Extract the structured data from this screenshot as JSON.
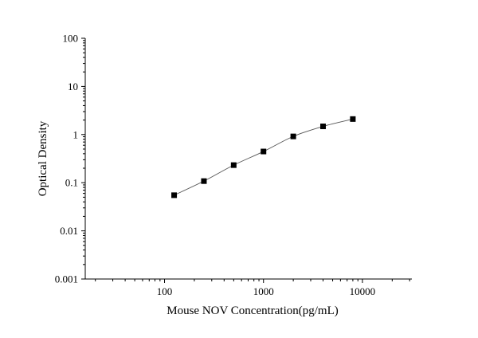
{
  "chart_data": {
    "type": "scatter",
    "title": "",
    "xlabel": "Mouse NOV Concentration(pg/mL)",
    "ylabel": "Optical Density",
    "x_scale": "log",
    "y_scale": "log",
    "xlim": [
      15.8,
      31600
    ],
    "ylim": [
      0.001,
      100
    ],
    "x_ticks": [
      {
        "value": 100,
        "label": "100"
      },
      {
        "value": 1000,
        "label": "1000"
      },
      {
        "value": 10000,
        "label": "10000"
      }
    ],
    "y_ticks": [
      {
        "value": 100,
        "label": "100"
      },
      {
        "value": 10,
        "label": "10"
      },
      {
        "value": 1,
        "label": "1"
      },
      {
        "value": 0.1,
        "label": "0.1"
      },
      {
        "value": 0.01,
        "label": "0.01"
      },
      {
        "value": 0.001,
        "label": "0.001"
      }
    ],
    "series": [
      {
        "x": [
          125,
          250,
          500,
          1000,
          2000,
          4000,
          8000
        ],
        "y": [
          0.055,
          0.108,
          0.232,
          0.445,
          0.915,
          1.48,
          2.1
        ],
        "marker": "square",
        "fit_curve": true,
        "color": "#000000"
      }
    ],
    "grid": false,
    "legend": "none"
  }
}
